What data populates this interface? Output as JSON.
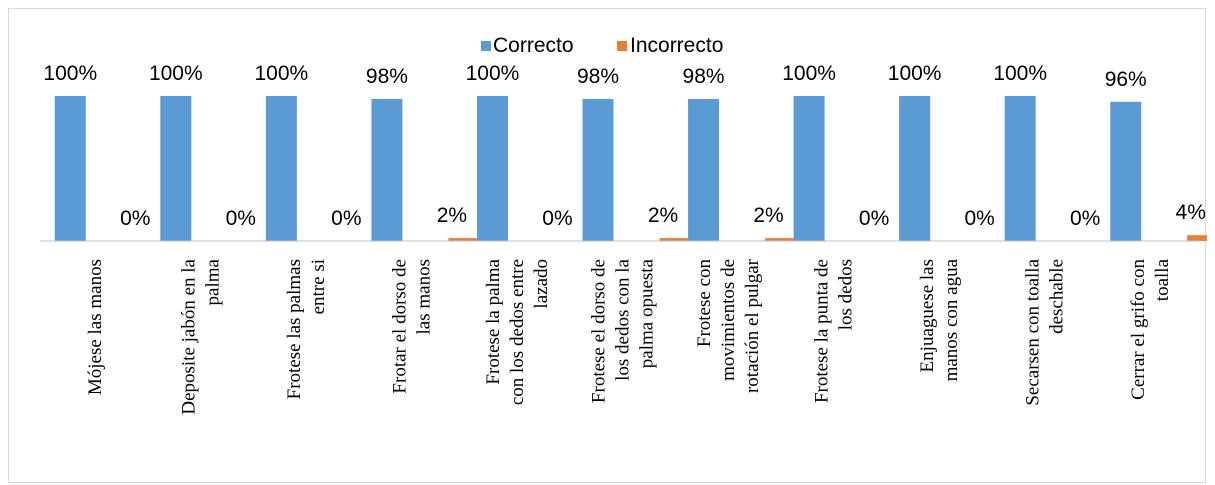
{
  "chart_data": {
    "type": "bar",
    "categories": [
      [
        "Mójese las manos"
      ],
      [
        "Deposite jabón en la",
        "palma"
      ],
      [
        "Frotese las palmas",
        "entre si"
      ],
      [
        "Frotar el dorso de",
        "las manos"
      ],
      [
        "Frotese la palma",
        "con los dedos entre",
        "lazado"
      ],
      [
        "Frotese el dorso de",
        "los dedos  con la",
        "palma opuesta"
      ],
      [
        "Frotese con",
        "movimientos de",
        "rotación el pulgar"
      ],
      [
        "Frotese la punta de",
        "los dedos"
      ],
      [
        "Enjuaguese las",
        "manos con agua"
      ],
      [
        "Secarsen con toalla",
        "deschable"
      ],
      [
        "Cerrar el grifo con",
        "toalla"
      ]
    ],
    "series": [
      {
        "name": "Correcto",
        "color": "#5b9bd5",
        "values": [
          1.0,
          1.0,
          1.0,
          0.98,
          1.0,
          0.98,
          0.98,
          1.0,
          1.0,
          1.0,
          0.96
        ],
        "labels": [
          "100%",
          "100%",
          "100%",
          "98%",
          "100%",
          "98%",
          "98%",
          "100%",
          "100%",
          "100%",
          "96%"
        ]
      },
      {
        "name": "Incorrecto",
        "color": "#ed7d31",
        "values": [
          0.0,
          0.0,
          0.0,
          0.02,
          0.0,
          0.02,
          0.02,
          0.0,
          0.0,
          0.0,
          0.04
        ],
        "labels": [
          "0%",
          "0%",
          "0%",
          "2%",
          "0%",
          "2%",
          "2%",
          "0%",
          "0%",
          "0%",
          "4%"
        ]
      }
    ],
    "ylim": [
      0,
      1
    ],
    "legend_position": "top-center",
    "grid": false
  }
}
